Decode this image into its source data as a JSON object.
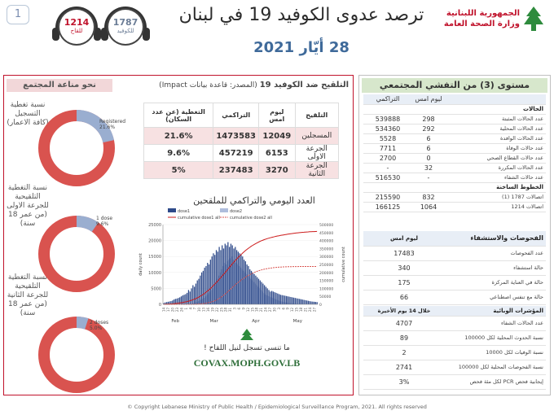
{
  "page_number": "1",
  "header": {
    "vaccine_count": "1214",
    "vaccine_label": "للقاح",
    "covid_count": "1787",
    "covid_label": "للكوفيد",
    "title": "ترصد عدوى الكوفيد 19 في لبنان",
    "date": "28 أيّار 2021",
    "ministry_line1": "الجمهورية اللبنانية",
    "ministry_line2": "وزارة الصحة العامة"
  },
  "left_panel": {
    "immunity_title": "نحو مناعة المجتمع",
    "donut1_label": "نسبة تغطية التسجيل (كافة الاعمار)",
    "donut1_legend": "Registered",
    "donut1_pct": "21.6%",
    "donut1_value": 21.6,
    "donut2_label": "نسبة التغطية التلقيحية للجرعة الاولى (من عمر 18 سنة)",
    "donut2_legend": "1 dose",
    "donut2_pct": "9.6%",
    "donut2_value": 9.6,
    "donut3_label": "نسبة التغطية التلقيحية للجرعة الثانية (من عمر 18 سنة)",
    "donut3_legend": "2 doses",
    "donut3_pct": "5.0%",
    "donut3_value": 5.0,
    "vax_title": "التلقيح ضد الكوفيد 19",
    "vax_source": "(المصدر: قاعدة بيانات Impact)",
    "table_headers": [
      "التلقيح",
      "ليوم امس",
      "التراكمي",
      "التغطية (عن عدد السكان)"
    ],
    "table_rows": [
      [
        "المسجلين",
        "12049",
        "1473583",
        "21.6%"
      ],
      [
        "الجرعة الاولى",
        "6153",
        "457219",
        "9.6%"
      ],
      [
        "الجرعة الثانية",
        "3270",
        "237483",
        "5%"
      ]
    ],
    "chart_title": "العدد اليومي والتراكمي للملقحين",
    "covax_text": "ما تنسى تسجل لنيل اللقاح !",
    "covax_url": "COVAX.MOPH.GOV.LB"
  },
  "chart_data": {
    "type": "bar",
    "title": "العدد اليومي والتراكمي للملقحين",
    "ylabel": "daily count",
    "y2label": "cumulative count",
    "ylim": [
      0,
      25000
    ],
    "y2lim": [
      0,
      500000
    ],
    "yticks": [
      "0",
      "5000",
      "10000",
      "15000",
      "20000",
      "25000"
    ],
    "y2ticks": [
      "0",
      "50000",
      "100000",
      "150000",
      "200000",
      "250000",
      "300000",
      "350000",
      "400000",
      "450000",
      "500000"
    ],
    "months": [
      "Feb",
      "Mar",
      "Apr",
      "May"
    ],
    "xticks": [
      "14",
      "17",
      "20",
      "23",
      "26",
      "1",
      "4",
      "7",
      "10",
      "13",
      "16",
      "19",
      "22",
      "25",
      "28",
      "31",
      "3",
      "6",
      "9",
      "12",
      "15",
      "18",
      "21",
      "24",
      "27",
      "30",
      "3",
      "6",
      "9",
      "12",
      "15",
      "18",
      "21",
      "24",
      "27"
    ],
    "legend": [
      "dose1",
      "dose2",
      "cumulative dose1 all",
      "cumulative dose2 all"
    ],
    "colors": {
      "dose1": "#2e4a8a",
      "dose2": "#aebddc",
      "cum1": "#cc1a1a",
      "cum2": "#d9534f"
    },
    "dose1": [
      400,
      600,
      700,
      800,
      900,
      1000,
      1200,
      1500,
      1700,
      1800,
      2000,
      2200,
      2500,
      2800,
      3000,
      3200,
      3600,
      4500,
      4000,
      5000,
      6000,
      5500,
      6500,
      7500,
      8000,
      9000,
      10000,
      10500,
      11500,
      12000,
      13000,
      12500,
      14000,
      15000,
      16000,
      15500,
      17000,
      16500,
      18000,
      17000,
      18500,
      17500,
      19000,
      18500,
      19500,
      18000,
      19000,
      18500,
      17500,
      18000,
      17000,
      16500,
      16000,
      15500,
      15000,
      14000,
      13500,
      12500,
      12000,
      11000,
      10500,
      10000,
      9500,
      9000,
      8500,
      8000,
      7500,
      7000,
      6500,
      6000,
      5500,
      5000,
      4500,
      4000,
      4200,
      4000,
      3800,
      3600,
      3400,
      3200,
      3000,
      2900,
      2800,
      2700,
      2600,
      2500,
      2400,
      2300,
      2200,
      2100,
      2000,
      1900,
      1800,
      1700,
      1600,
      1500,
      1400,
      1300,
      1200,
      1100,
      1000,
      900,
      850,
      800,
      750,
      700
    ],
    "dose2": [
      0,
      0,
      0,
      0,
      0,
      0,
      0,
      0,
      0,
      0,
      0,
      0,
      0,
      0,
      0,
      0,
      0,
      0,
      0,
      0,
      200,
      400,
      600,
      800,
      1000,
      1200,
      1500,
      1800,
      2000,
      2500,
      3000,
      3500,
      4000,
      4500,
      5000,
      6000,
      7000,
      8000,
      9000,
      10000,
      11000,
      12000,
      13000,
      12500,
      13500,
      14000,
      14500,
      15000,
      14000,
      13500,
      13000,
      12500,
      12000,
      11500,
      11000,
      10500,
      10000,
      9500,
      9000,
      8500,
      8000,
      7500,
      7000,
      6500,
      6000,
      5500,
      5000,
      4500,
      4000,
      3500,
      3000,
      2800,
      2600,
      2400,
      2200,
      2000,
      1800,
      1600,
      1400,
      1200,
      1000,
      900,
      800,
      700,
      600,
      500,
      450,
      400,
      350,
      300,
      250,
      200,
      180,
      160,
      140,
      120,
      100,
      80,
      60,
      50,
      40,
      30,
      20,
      10,
      10,
      10
    ],
    "cum1_end": 457219,
    "cum2_end": 237483
  },
  "right_panel": {
    "title": "مستوى (3) من التفشي المجتمعي",
    "col_cum": "التراكمي",
    "col_yday": "ليوم امس",
    "rows": [
      [
        "الحالات",
        "",
        ""
      ],
      [
        "عدد الحالات المثبتة",
        "298",
        "539888"
      ],
      [
        "عدد الحالات المحلية",
        "292",
        "534360"
      ],
      [
        "عدد الحالات الوافدة",
        "6",
        "5528"
      ],
      [
        "عدد حالات الوفاة",
        "6",
        "7711"
      ],
      [
        "عدد حالات القطاع الصحي",
        "0",
        "2700"
      ],
      [
        "عدد الحالات المكررة",
        "32",
        "-"
      ],
      [
        "عدد حالات الشفاء",
        "-",
        "516530"
      ],
      [
        "الخطوط الساخنة",
        "",
        ""
      ],
      [
        "اتصالات 1787 (1)",
        "832",
        "215590"
      ],
      [
        "اتصالات 1214",
        "1064",
        "166125"
      ]
    ],
    "tests_title": "الفحوصات والاستشفاء",
    "tests_col": "ليوم امس",
    "tests_rows": [
      [
        "عدد الفحوصات",
        "17483"
      ],
      [
        "حالة استشفاء",
        "340"
      ],
      [
        "حالة في العناية المركزة",
        "175"
      ],
      [
        "حالة مع تنفس اصطناعي",
        "66"
      ]
    ],
    "epi_title": "المؤشرات الوبائية",
    "epi_col": "خلال 14 يوم الأخيرة",
    "epi_rows": [
      [
        "عدد الحالات الشفاء",
        "4707"
      ],
      [
        "نسبة الحدوث المحلية لكل 100000",
        "89"
      ],
      [
        "نسبة الوفيات لكل 10000",
        "2"
      ],
      [
        "نسبة الفحوصات  المحلية لكل 100000",
        "2741"
      ],
      [
        "إيجابية فحص PCR لكل مئة فحص",
        "3%"
      ]
    ]
  },
  "footer": "© Copyright Lebanese Ministry of Public Health / Epidemiological Surveillance Program, 2021. All rights reserved"
}
